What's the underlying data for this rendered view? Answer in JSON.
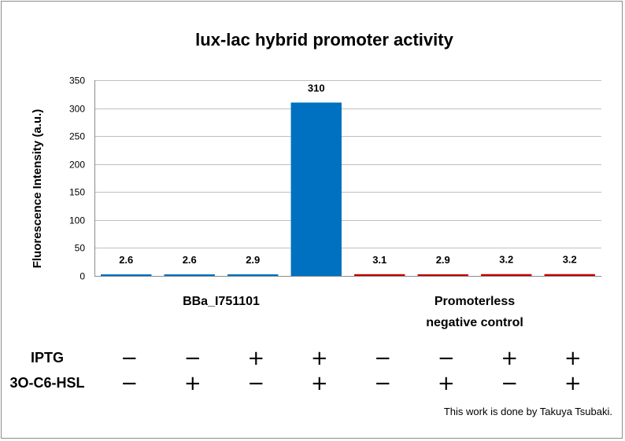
{
  "chart_data": {
    "type": "bar",
    "title": "lux-lac hybrid promoter activity",
    "ylabel": "Fluorescence  Intensity  (a.u.)",
    "ylim": [
      0,
      350
    ],
    "yticks": [
      0,
      50,
      100,
      150,
      200,
      250,
      300,
      350
    ],
    "grid": true,
    "values": [
      2.6,
      2.6,
      2.9,
      310,
      3.1,
      2.9,
      3.2,
      3.2
    ],
    "data_labels": [
      "2.6",
      "2.6",
      "2.9",
      "310",
      "3.1",
      "2.9",
      "3.2",
      "3.2"
    ],
    "bar_colors": [
      "#0070c0",
      "#0070c0",
      "#0070c0",
      "#0070c0",
      "#c00000",
      "#c00000",
      "#c00000",
      "#c00000"
    ],
    "groups": [
      {
        "label_lines": [
          "BBa_I751101"
        ],
        "bar_indices": [
          0,
          1,
          2,
          3
        ]
      },
      {
        "label_lines": [
          "Promoterless",
          "negative control"
        ],
        "bar_indices": [
          4,
          5,
          6,
          7
        ]
      }
    ],
    "conditions": [
      {
        "label": "IPTG",
        "signs": [
          "−",
          "−",
          "+",
          "+",
          "−",
          "−",
          "+",
          "+"
        ]
      },
      {
        "label": "3O-C6-HSL",
        "signs": [
          "−",
          "+",
          "−",
          "+",
          "−",
          "+",
          "−",
          "+"
        ]
      }
    ]
  },
  "credit": "This work is done by Takuya Tsubaki."
}
